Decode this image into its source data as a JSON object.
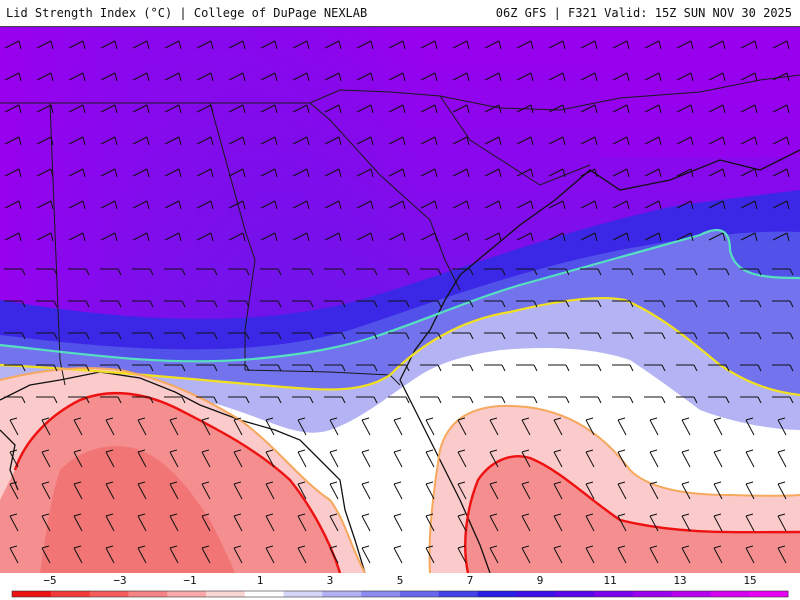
{
  "header": {
    "title": "Lid Strength Index (°C) | College of DuPage NEXLAB",
    "run_info": "06Z GFS | F321 Valid: 15Z SUN NOV 30 2025"
  },
  "legend": {
    "tick_labels": [
      "−5",
      "−3",
      "−1",
      "1",
      "3",
      "5",
      "7",
      "9",
      "11",
      "13",
      "15"
    ],
    "colors": [
      "#ee1111",
      "#f23a3a",
      "#f55c5c",
      "#f78484",
      "#f9a9a9",
      "#fbd4d4",
      "#ffffff",
      "#d6d6f8",
      "#b1b1f4",
      "#8c8cf0",
      "#6767ec",
      "#4242e8",
      "#2a1ee6",
      "#3d10e8",
      "#5a06ea",
      "#7d00ec",
      "#9a00ee",
      "#b800f0",
      "#d300f2",
      "#e800f4"
    ]
  },
  "map": {
    "region": "Southeastern United States",
    "contour_colors": {
      "0": "#ee1111",
      "1": "#f6a85c",
      "3": "#f0e020",
      "6": "#57e0c0"
    },
    "wind_barb_color": "#111111",
    "border_color": "#1a1a1a"
  }
}
